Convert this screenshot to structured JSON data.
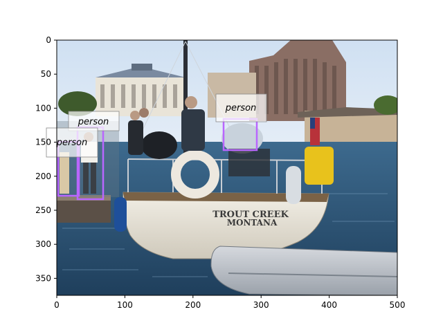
{
  "image": {
    "description_icon": "photo-icon",
    "boat_name_line1": "TROUT CREEK",
    "boat_name_line2": "MONTANA"
  },
  "axes": {
    "x_ticks": [
      "0",
      "100",
      "200",
      "300",
      "400",
      "500"
    ],
    "y_ticks": [
      "0",
      "50",
      "100",
      "150",
      "200",
      "250",
      "300",
      "350"
    ]
  },
  "detections": [
    {
      "label": "person",
      "color": "#b966ff"
    },
    {
      "label": "person",
      "color": "#b966ff"
    },
    {
      "label": "person",
      "color": "#b966ff"
    }
  ]
}
